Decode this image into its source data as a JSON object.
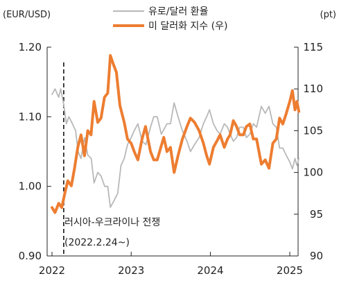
{
  "chart_data": {
    "type": "line",
    "left_axis_unit": "(EUR/USD)",
    "right_axis_unit": "(pt)",
    "left_ylim": [
      0.9,
      1.2
    ],
    "left_ticks": [
      "1.20",
      "1.10",
      "1.00",
      "0.90"
    ],
    "right_ylim": [
      90,
      115
    ],
    "right_ticks": [
      "115",
      "110",
      "105",
      "100",
      "95",
      "90"
    ],
    "x_ticks": [
      "2022",
      "2023",
      "2024",
      "2025"
    ],
    "legend_position": "top-center",
    "annotation": {
      "event_date": "2022-02-24",
      "line1": "러시아-우크라이나 전쟁",
      "line2": "(2022.2.24~)"
    },
    "series": [
      {
        "name": "유로/달러 환율",
        "axis": "left",
        "color": "#b8b8b8",
        "points": [
          [
            "2022-01-01",
            1.132
          ],
          [
            "2022-01-15",
            1.14
          ],
          [
            "2022-02-01",
            1.128
          ],
          [
            "2022-02-10",
            1.14
          ],
          [
            "2022-02-24",
            1.118
          ],
          [
            "2022-03-08",
            1.09
          ],
          [
            "2022-03-20",
            1.1
          ],
          [
            "2022-04-05",
            1.09
          ],
          [
            "2022-04-20",
            1.08
          ],
          [
            "2022-05-01",
            1.05
          ],
          [
            "2022-05-15",
            1.04
          ],
          [
            "2022-05-31",
            1.07
          ],
          [
            "2022-06-15",
            1.045
          ],
          [
            "2022-07-01",
            1.04
          ],
          [
            "2022-07-14",
            1.005
          ],
          [
            "2022-07-31",
            1.02
          ],
          [
            "2022-08-15",
            1.015
          ],
          [
            "2022-09-01",
            1.0
          ],
          [
            "2022-09-15",
            1.0
          ],
          [
            "2022-09-27",
            0.97
          ],
          [
            "2022-10-15",
            0.98
          ],
          [
            "2022-10-31",
            0.99
          ],
          [
            "2022-11-15",
            1.03
          ],
          [
            "2022-11-30",
            1.04
          ],
          [
            "2022-12-15",
            1.06
          ],
          [
            "2023-01-01",
            1.07
          ],
          [
            "2023-01-15",
            1.08
          ],
          [
            "2023-02-01",
            1.09
          ],
          [
            "2023-02-20",
            1.065
          ],
          [
            "2023-03-10",
            1.06
          ],
          [
            "2023-03-31",
            1.085
          ],
          [
            "2023-04-15",
            1.1
          ],
          [
            "2023-05-01",
            1.1
          ],
          [
            "2023-05-20",
            1.075
          ],
          [
            "2023-06-15",
            1.09
          ],
          [
            "2023-07-01",
            1.09
          ],
          [
            "2023-07-18",
            1.12
          ],
          [
            "2023-08-05",
            1.1
          ],
          [
            "2023-08-25",
            1.08
          ],
          [
            "2023-09-15",
            1.065
          ],
          [
            "2023-10-01",
            1.05
          ],
          [
            "2023-10-20",
            1.06
          ],
          [
            "2023-11-10",
            1.07
          ],
          [
            "2023-11-30",
            1.09
          ],
          [
            "2023-12-15",
            1.1
          ],
          [
            "2023-12-28",
            1.11
          ],
          [
            "2024-01-15",
            1.09
          ],
          [
            "2024-02-01",
            1.08
          ],
          [
            "2024-02-15",
            1.075
          ],
          [
            "2024-03-05",
            1.09
          ],
          [
            "2024-03-20",
            1.085
          ],
          [
            "2024-04-01",
            1.075
          ],
          [
            "2024-04-16",
            1.065
          ],
          [
            "2024-05-01",
            1.07
          ],
          [
            "2024-05-15",
            1.085
          ],
          [
            "2024-06-01",
            1.085
          ],
          [
            "2024-06-15",
            1.07
          ],
          [
            "2024-07-01",
            1.075
          ],
          [
            "2024-07-17",
            1.09
          ],
          [
            "2024-08-01",
            1.085
          ],
          [
            "2024-08-23",
            1.115
          ],
          [
            "2024-09-10",
            1.105
          ],
          [
            "2024-09-27",
            1.115
          ],
          [
            "2024-10-15",
            1.09
          ],
          [
            "2024-10-31",
            1.085
          ],
          [
            "2024-11-15",
            1.055
          ],
          [
            "2024-11-30",
            1.055
          ],
          [
            "2024-12-15",
            1.045
          ],
          [
            "2025-01-01",
            1.035
          ],
          [
            "2025-01-13",
            1.025
          ],
          [
            "2025-01-25",
            1.04
          ],
          [
            "2025-02-03",
            1.03
          ],
          [
            "2025-02-12",
            1.04
          ]
        ]
      },
      {
        "name": "미 달러화 지수 (우)",
        "axis": "right",
        "color": "#ed7d31",
        "points": [
          [
            "2022-01-01",
            95.8
          ],
          [
            "2022-01-15",
            95.2
          ],
          [
            "2022-02-01",
            96.3
          ],
          [
            "2022-02-15",
            95.8
          ],
          [
            "2022-03-01",
            97.5
          ],
          [
            "2022-03-15",
            99.0
          ],
          [
            "2022-03-31",
            98.4
          ],
          [
            "2022-04-15",
            100.5
          ],
          [
            "2022-04-30",
            103.0
          ],
          [
            "2022-05-15",
            104.5
          ],
          [
            "2022-05-31",
            102.0
          ],
          [
            "2022-06-15",
            105.0
          ],
          [
            "2022-06-30",
            104.5
          ],
          [
            "2022-07-14",
            108.5
          ],
          [
            "2022-07-31",
            106.0
          ],
          [
            "2022-08-15",
            106.5
          ],
          [
            "2022-08-31",
            109.0
          ],
          [
            "2022-09-15",
            109.5
          ],
          [
            "2022-09-27",
            114.0
          ],
          [
            "2022-10-10",
            113.0
          ],
          [
            "2022-10-25",
            112.0
          ],
          [
            "2022-11-10",
            108.0
          ],
          [
            "2022-11-30",
            106.0
          ],
          [
            "2022-12-15",
            104.0
          ],
          [
            "2023-01-01",
            103.5
          ],
          [
            "2023-01-15",
            102.5
          ],
          [
            "2023-02-01",
            101.5
          ],
          [
            "2023-02-20",
            104.0
          ],
          [
            "2023-03-08",
            105.5
          ],
          [
            "2023-03-31",
            102.5
          ],
          [
            "2023-04-15",
            101.5
          ],
          [
            "2023-05-01",
            101.5
          ],
          [
            "2023-05-31",
            104.2
          ],
          [
            "2023-06-15",
            102.5
          ],
          [
            "2023-07-01",
            103.0
          ],
          [
            "2023-07-18",
            100.0
          ],
          [
            "2023-08-05",
            102.0
          ],
          [
            "2023-08-25",
            104.0
          ],
          [
            "2023-09-15",
            105.5
          ],
          [
            "2023-10-01",
            106.5
          ],
          [
            "2023-10-20",
            106.0
          ],
          [
            "2023-11-10",
            105.0
          ],
          [
            "2023-11-30",
            103.5
          ],
          [
            "2023-12-15",
            102.0
          ],
          [
            "2023-12-28",
            101.0
          ],
          [
            "2024-01-15",
            103.0
          ],
          [
            "2024-02-01",
            103.8
          ],
          [
            "2024-02-15",
            104.5
          ],
          [
            "2024-03-05",
            103.0
          ],
          [
            "2024-03-20",
            104.0
          ],
          [
            "2024-04-01",
            104.5
          ],
          [
            "2024-04-16",
            106.2
          ],
          [
            "2024-05-01",
            105.5
          ],
          [
            "2024-05-15",
            104.5
          ],
          [
            "2024-06-01",
            104.5
          ],
          [
            "2024-06-15",
            105.5
          ],
          [
            "2024-07-01",
            105.8
          ],
          [
            "2024-07-17",
            104.0
          ],
          [
            "2024-08-01",
            104.0
          ],
          [
            "2024-08-23",
            101.0
          ],
          [
            "2024-09-10",
            101.5
          ],
          [
            "2024-09-27",
            100.5
          ],
          [
            "2024-10-15",
            103.5
          ],
          [
            "2024-10-31",
            104.0
          ],
          [
            "2024-11-15",
            106.5
          ],
          [
            "2024-11-30",
            105.8
          ],
          [
            "2024-12-15",
            107.0
          ],
          [
            "2025-01-01",
            108.5
          ],
          [
            "2025-01-13",
            109.8
          ],
          [
            "2025-01-25",
            107.5
          ],
          [
            "2025-02-03",
            108.5
          ],
          [
            "2025-02-12",
            107.3
          ]
        ]
      }
    ]
  }
}
